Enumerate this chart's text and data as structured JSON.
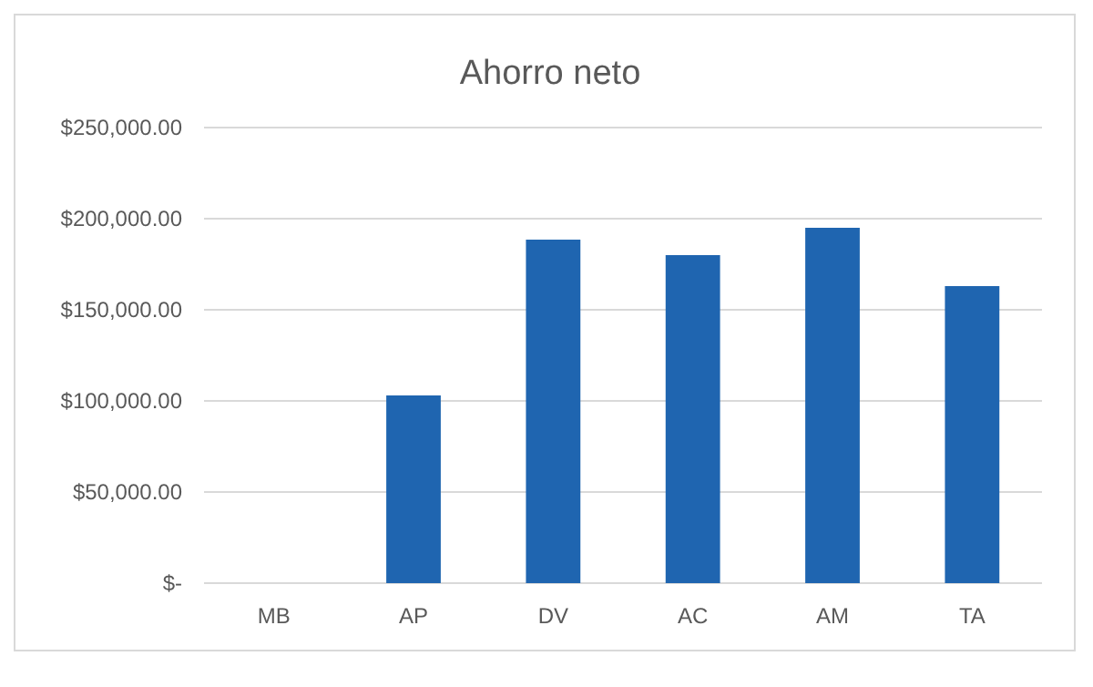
{
  "chart_data": {
    "type": "bar",
    "title": "Ahorro neto",
    "categories": [
      "MB",
      "AP",
      "DV",
      "AC",
      "AM",
      "TA"
    ],
    "values": [
      0,
      103000,
      188500,
      180000,
      195000,
      163000
    ],
    "color": "#1f65b0",
    "ylim": [
      0,
      250000
    ],
    "yticks": [
      {
        "value": 0,
        "label": "$-"
      },
      {
        "value": 50000,
        "label": "$50,000.00"
      },
      {
        "value": 100000,
        "label": "$100,000.00"
      },
      {
        "value": 150000,
        "label": "$150,000.00"
      },
      {
        "value": 200000,
        "label": "$200,000.00"
      },
      {
        "value": 250000,
        "label": "$250,000.00"
      }
    ],
    "grid": true
  }
}
